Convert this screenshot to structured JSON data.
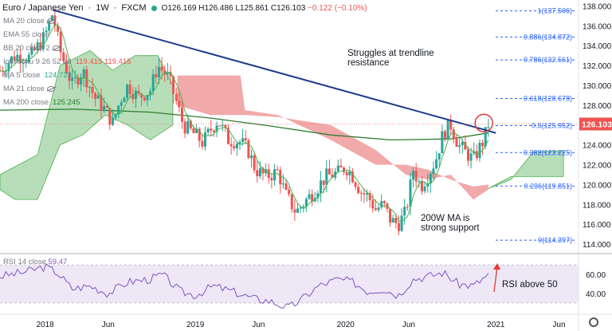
{
  "header": {
    "symbol": "Euro / Japanese Yen",
    "interval": "1W",
    "source": "FXCM",
    "ohlc": "O126.169 H126.486 L125.861 C126.103",
    "change": "−0.122 (−0.10%)"
  },
  "indicators": [
    {
      "label": "MA 20 close",
      "value": "",
      "hidden": true
    },
    {
      "label": "EMA 55 close",
      "value": "",
      "hidden": false
    },
    {
      "label": "BB 20 close 2",
      "value": "",
      "hidden": true
    },
    {
      "label": "Ichimoku 9 26 52 26",
      "value": "119.415  119.415",
      "hidden": false
    },
    {
      "label": "MA 5 close",
      "value": "124.723",
      "hidden": false
    },
    {
      "label": "MA 21 close",
      "value": "",
      "hidden": true
    },
    {
      "label": "MA 200 close",
      "value": "125.245",
      "hidden": false
    }
  ],
  "rsi_label": "RSI 14 close",
  "rsi_value": "59.47",
  "annotations": {
    "trendline_note": "Struggles at trendline resistance",
    "ma_note": "200W MA is strong support",
    "rsi_note": "RSI above 50"
  },
  "colors": {
    "up": "#26a69a",
    "down": "#ef5350",
    "trendline": "#1b3a8c",
    "ma200": "#2e7d32",
    "ma_fast": "#4caf50",
    "cloud_bull": "#a5d6a7",
    "cloud_bear": "#ef9a9a",
    "rsi": "#7e57c2",
    "rsi_band": "#ede7f6",
    "price_tag": "#ef5350",
    "circle": "#e53935"
  },
  "chart_data": {
    "type": "candlestick",
    "title": "Euro / Japanese Yen · 1W · FXCM",
    "last_price": "126.103",
    "y_axis": {
      "ticks": [
        "138.000",
        "136.000",
        "134.000",
        "132.000",
        "130.000",
        "128.000",
        "126.000",
        "124.000",
        "122.000",
        "120.000",
        "118.000",
        "116.000",
        "114.000"
      ],
      "ylim": [
        113.2,
        138.6
      ]
    },
    "x_axis": {
      "ticks": [
        "2018",
        "Jun",
        "2019",
        "Jun",
        "2020",
        "Jun",
        "2021",
        "Jun"
      ]
    },
    "fib_levels": [
      {
        "label": "1(137.506)",
        "value": 137.506
      },
      {
        "label": "0.886(134.872)",
        "value": 134.872
      },
      {
        "label": "0.786(132.561)",
        "value": 132.561
      },
      {
        "label": "0.618(128.678)",
        "value": 128.678
      },
      {
        "label": "0.5(125.952)",
        "value": 125.952
      },
      {
        "label": "0.382(123.225)",
        "value": 123.225
      },
      {
        "label": "0.236(119.851)",
        "value": 119.851
      },
      {
        "label": "0(114.397)",
        "value": 114.397
      }
    ],
    "price_path": [
      [
        2017.7,
        131.5
      ],
      [
        2017.8,
        133.0
      ],
      [
        2017.9,
        132.8
      ],
      [
        2018.0,
        135.0
      ],
      [
        2018.05,
        137.3
      ],
      [
        2018.1,
        133.5
      ],
      [
        2018.18,
        130.0
      ],
      [
        2018.25,
        131.5
      ],
      [
        2018.33,
        128.8
      ],
      [
        2018.4,
        127.5
      ],
      [
        2018.45,
        126.2
      ],
      [
        2018.5,
        128.5
      ],
      [
        2018.55,
        130.0
      ],
      [
        2018.62,
        128.8
      ],
      [
        2018.7,
        129.5
      ],
      [
        2018.75,
        132.0
      ],
      [
        2018.82,
        130.8
      ],
      [
        2018.87,
        128.5
      ],
      [
        2018.92,
        126.0
      ],
      [
        2019.0,
        125.0
      ],
      [
        2019.05,
        124.2
      ],
      [
        2019.1,
        125.5
      ],
      [
        2019.15,
        126.5
      ],
      [
        2019.22,
        124.5
      ],
      [
        2019.3,
        124.3
      ],
      [
        2019.35,
        123.5
      ],
      [
        2019.4,
        121.5
      ],
      [
        2019.47,
        120.8
      ],
      [
        2019.55,
        121.3
      ],
      [
        2019.6,
        119.0
      ],
      [
        2019.67,
        117.2
      ],
      [
        2019.73,
        118.3
      ],
      [
        2019.8,
        119.5
      ],
      [
        2019.87,
        120.8
      ],
      [
        2019.95,
        121.2
      ],
      [
        2020.0,
        121.8
      ],
      [
        2020.05,
        120.8
      ],
      [
        2020.1,
        119.3
      ],
      [
        2020.15,
        118.8
      ],
      [
        2020.2,
        117.5
      ],
      [
        2020.25,
        118.0
      ],
      [
        2020.3,
        116.4
      ],
      [
        2020.35,
        116.0
      ],
      [
        2020.4,
        117.2
      ],
      [
        2020.45,
        121.5
      ],
      [
        2020.5,
        119.8
      ],
      [
        2020.55,
        121.0
      ],
      [
        2020.6,
        122.5
      ],
      [
        2020.65,
        125.2
      ],
      [
        2020.7,
        126.0
      ],
      [
        2020.75,
        124.0
      ],
      [
        2020.8,
        123.2
      ],
      [
        2020.85,
        122.5
      ],
      [
        2020.88,
        123.4
      ],
      [
        2020.92,
        124.5
      ],
      [
        2020.95,
        126.1
      ]
    ],
    "trendline": [
      [
        2018.05,
        137.6
      ],
      [
        2021.0,
        125.2
      ]
    ],
    "ma200": [
      [
        2017.7,
        127.5
      ],
      [
        2018.2,
        127.6
      ],
      [
        2018.7,
        127.3
      ],
      [
        2019.1,
        126.7
      ],
      [
        2019.5,
        125.9
      ],
      [
        2019.9,
        125.0
      ],
      [
        2020.3,
        124.5
      ],
      [
        2020.7,
        124.6
      ],
      [
        2020.95,
        125.2
      ]
    ],
    "rsi": {
      "ylim": [
        20,
        80
      ],
      "ticks": [
        "60.00",
        "40.00"
      ],
      "band": [
        30,
        70
      ],
      "values": [
        [
          2017.7,
          58
        ],
        [
          2017.85,
          62
        ],
        [
          2018.0,
          68
        ],
        [
          2018.08,
          62
        ],
        [
          2018.18,
          45
        ],
        [
          2018.3,
          48
        ],
        [
          2018.42,
          40
        ],
        [
          2018.55,
          52
        ],
        [
          2018.7,
          55
        ],
        [
          2018.78,
          60
        ],
        [
          2018.9,
          42
        ],
        [
          2019.0,
          38
        ],
        [
          2019.12,
          48
        ],
        [
          2019.25,
          42
        ],
        [
          2019.38,
          35
        ],
        [
          2019.5,
          32
        ],
        [
          2019.62,
          25
        ],
        [
          2019.7,
          33
        ],
        [
          2019.82,
          48
        ],
        [
          2019.95,
          55
        ],
        [
          2020.05,
          52
        ],
        [
          2020.15,
          42
        ],
        [
          2020.25,
          45
        ],
        [
          2020.35,
          38
        ],
        [
          2020.45,
          55
        ],
        [
          2020.55,
          58
        ],
        [
          2020.65,
          62
        ],
        [
          2020.75,
          50
        ],
        [
          2020.85,
          48
        ],
        [
          2020.95,
          59.47
        ]
      ]
    }
  }
}
